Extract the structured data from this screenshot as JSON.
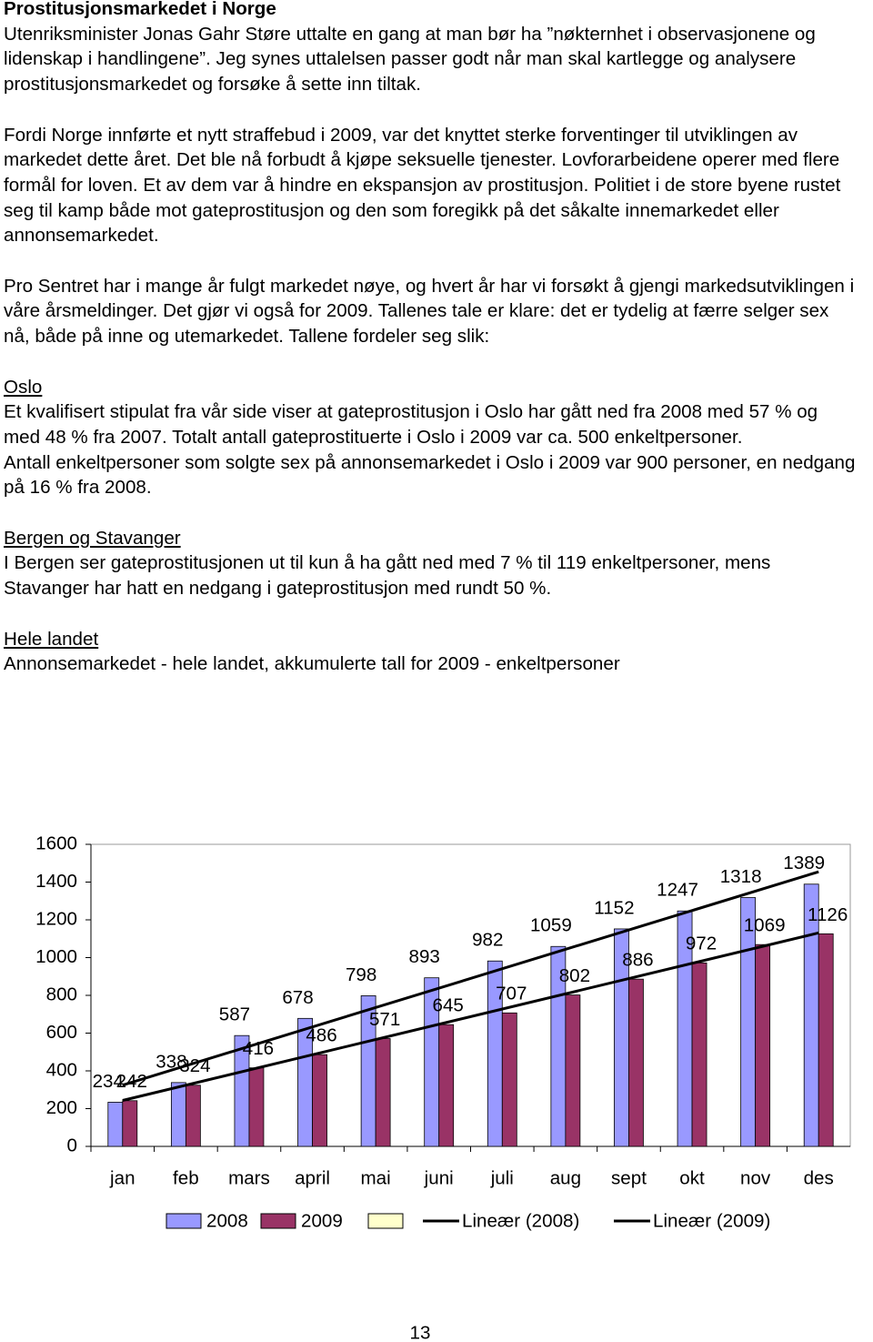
{
  "intro": {
    "title": "Prostitusjonsmarkedet i Norge",
    "paragraphs": [
      "Utenriksminister Jonas Gahr Støre uttalte en gang at man bør ha ”nøkternhet i observasjonene og lidenskap i handlingene”. Jeg synes uttalelsen passer godt når man skal kartlegge og analysere prostitusjonsmarkedet og forsøke å sette inn tiltak.",
      "Fordi Norge innførte et nytt straffebud i 2009, var det knyttet sterke forventinger til utviklingen av markedet dette året. Det ble nå forbudt å kjøpe seksuelle tjenester. Lovforarbeidene operer med flere formål for loven. Et av dem var å hindre en ekspansjon av prostitusjon. Politiet i de store byene rustet seg til kamp både mot gateprostitusjon og den som foregikk på det såkalte innemarkedet eller annonsemarkedet.",
      "Pro Sentret har i mange år fulgt markedet nøye, og hvert år har vi forsøkt å gjengi markedsutviklingen i våre årsmeldinger. Det gjør vi også for 2009. Tallenes tale er klare: det er tydelig at færre selger sex nå, både på inne og utemarkedet. Tallene fordeler seg slik:"
    ]
  },
  "sections": [
    {
      "heading": "Oslo",
      "paragraphs": [
        "Et kvalifisert stipulat fra vår side viser at gateprostitusjon i Oslo har gått ned fra 2008 med 57 % og med 48 % fra 2007. Totalt antall gateprostituerte i Oslo i 2009 var ca. 500 enkeltpersoner.",
        "Antall enkeltpersoner som solgte sex på annonsemarkedet i Oslo i 2009 var 900 personer, en nedgang på 16 % fra 2008."
      ]
    },
    {
      "heading": "Bergen og Stavanger",
      "paragraphs": [
        "I Bergen ser gateprostitusjonen ut til kun å ha gått ned med 7 % til 119 enkeltpersoner, mens Stavanger har hatt en nedgang i gateprostitusjon med rundt 50 %."
      ]
    },
    {
      "heading": "Hele landet",
      "paragraphs": [
        "Annonsemarkedet - hele landet, akkumulerte tall for 2009 - enkeltpersoner"
      ]
    }
  ],
  "chart_data": {
    "type": "bar",
    "categories": [
      "jan",
      "feb",
      "mars",
      "april",
      "mai",
      "juni",
      "juli",
      "aug",
      "sept",
      "okt",
      "nov",
      "des"
    ],
    "series": [
      {
        "name": "2008",
        "color": "#9999ff",
        "values": [
          234,
          338,
          587,
          678,
          798,
          893,
          982,
          1059,
          1152,
          1247,
          1318,
          1389
        ],
        "trendline": "Lineær (2008)"
      },
      {
        "name": "2009",
        "color": "#993366",
        "values": [
          242,
          324,
          416,
          486,
          571,
          645,
          707,
          802,
          886,
          972,
          1069,
          1126
        ],
        "trendline": "Lineær (2009)"
      }
    ],
    "ylim": [
      0,
      1600
    ],
    "yticks": [
      0,
      200,
      400,
      600,
      800,
      1000,
      1200,
      1400,
      1600
    ],
    "grid": false
  },
  "page_number": "13"
}
